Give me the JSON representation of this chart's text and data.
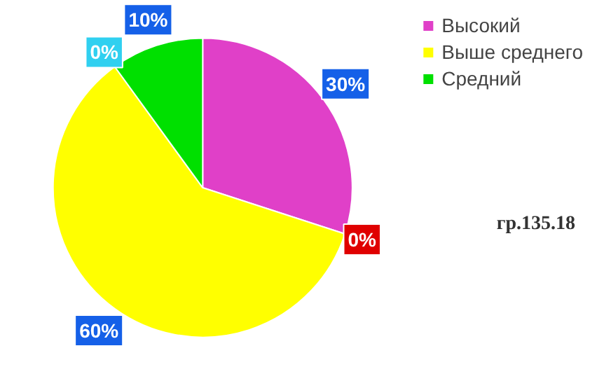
{
  "chart_data": {
    "type": "pie",
    "categories": [
      "Высокий",
      null,
      "Выше среднего",
      null,
      "Средний"
    ],
    "values": [
      30,
      0,
      60,
      0,
      10
    ],
    "colors": [
      "#e040c8",
      "#e00000",
      "#ffff00",
      "#30d0f0",
      "#00e000"
    ],
    "value_labels": [
      "30%",
      "0%",
      "60%",
      "0%",
      "10%"
    ],
    "legend": "top right",
    "annotations": [
      "гр.135.18"
    ]
  }
}
